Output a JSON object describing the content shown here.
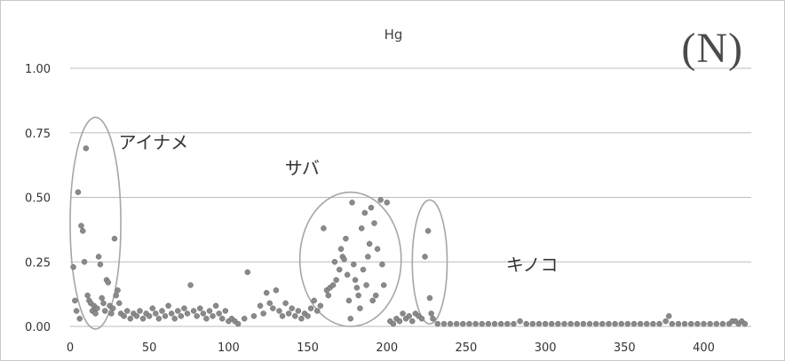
{
  "chart_data": {
    "type": "scatter",
    "title": "Hg",
    "panel_label": "(N)",
    "xlim": [
      0,
      430
    ],
    "ylim": [
      0,
      1.0
    ],
    "x_ticks": [
      0,
      50,
      100,
      150,
      200,
      250,
      300,
      350,
      400
    ],
    "y_ticks": [
      0.0,
      0.25,
      0.5,
      0.75,
      1.0
    ],
    "y_tick_labels": [
      "0.00",
      "0.25",
      "0.50",
      "0.75",
      "1.00"
    ],
    "grid": "horizontal",
    "marker_color": "#8a8a8a",
    "groups": [
      {
        "label": "アイナメ",
        "center": [
          16,
          0.4
        ],
        "radius_x": 16,
        "radius_y": 0.41
      },
      {
        "label": "サバ",
        "center": [
          177,
          0.26
        ],
        "radius_x": 32,
        "radius_y": 0.26
      },
      {
        "label": "キノコ",
        "center": [
          227,
          0.25
        ],
        "radius_x": 11,
        "radius_y": 0.24
      }
    ],
    "points": [
      [
        2,
        0.23
      ],
      [
        3,
        0.1
      ],
      [
        4,
        0.06
      ],
      [
        5,
        0.52
      ],
      [
        6,
        0.03
      ],
      [
        7,
        0.39
      ],
      [
        8,
        0.37
      ],
      [
        9,
        0.25
      ],
      [
        10,
        0.69
      ],
      [
        11,
        0.12
      ],
      [
        12,
        0.1
      ],
      [
        13,
        0.09
      ],
      [
        14,
        0.06
      ],
      [
        15,
        0.08
      ],
      [
        16,
        0.05
      ],
      [
        17,
        0.07
      ],
      [
        18,
        0.27
      ],
      [
        19,
        0.24
      ],
      [
        20,
        0.11
      ],
      [
        21,
        0.09
      ],
      [
        22,
        0.06
      ],
      [
        23,
        0.18
      ],
      [
        24,
        0.17
      ],
      [
        25,
        0.08
      ],
      [
        26,
        0.05
      ],
      [
        27,
        0.07
      ],
      [
        28,
        0.34
      ],
      [
        29,
        0.12
      ],
      [
        30,
        0.14
      ],
      [
        31,
        0.09
      ],
      [
        32,
        0.05
      ],
      [
        34,
        0.04
      ],
      [
        36,
        0.06
      ],
      [
        38,
        0.03
      ],
      [
        40,
        0.05
      ],
      [
        42,
        0.04
      ],
      [
        44,
        0.06
      ],
      [
        46,
        0.03
      ],
      [
        48,
        0.05
      ],
      [
        50,
        0.04
      ],
      [
        52,
        0.07
      ],
      [
        54,
        0.05
      ],
      [
        56,
        0.03
      ],
      [
        58,
        0.06
      ],
      [
        60,
        0.04
      ],
      [
        62,
        0.08
      ],
      [
        64,
        0.05
      ],
      [
        66,
        0.03
      ],
      [
        68,
        0.06
      ],
      [
        70,
        0.04
      ],
      [
        72,
        0.07
      ],
      [
        74,
        0.05
      ],
      [
        76,
        0.16
      ],
      [
        78,
        0.06
      ],
      [
        80,
        0.04
      ],
      [
        82,
        0.07
      ],
      [
        84,
        0.05
      ],
      [
        86,
        0.03
      ],
      [
        88,
        0.06
      ],
      [
        90,
        0.04
      ],
      [
        92,
        0.08
      ],
      [
        94,
        0.05
      ],
      [
        96,
        0.03
      ],
      [
        98,
        0.06
      ],
      [
        100,
        0.02
      ],
      [
        102,
        0.03
      ],
      [
        104,
        0.02
      ],
      [
        106,
        0.01
      ],
      [
        110,
        0.03
      ],
      [
        112,
        0.21
      ],
      [
        116,
        0.04
      ],
      [
        120,
        0.08
      ],
      [
        122,
        0.05
      ],
      [
        124,
        0.13
      ],
      [
        126,
        0.09
      ],
      [
        128,
        0.07
      ],
      [
        130,
        0.14
      ],
      [
        132,
        0.06
      ],
      [
        134,
        0.04
      ],
      [
        136,
        0.09
      ],
      [
        138,
        0.05
      ],
      [
        140,
        0.07
      ],
      [
        142,
        0.04
      ],
      [
        144,
        0.06
      ],
      [
        146,
        0.03
      ],
      [
        148,
        0.05
      ],
      [
        150,
        0.04
      ],
      [
        152,
        0.07
      ],
      [
        154,
        0.1
      ],
      [
        156,
        0.06
      ],
      [
        158,
        0.08
      ],
      [
        160,
        0.38
      ],
      [
        162,
        0.14
      ],
      [
        163,
        0.12
      ],
      [
        164,
        0.15
      ],
      [
        166,
        0.16
      ],
      [
        167,
        0.25
      ],
      [
        168,
        0.18
      ],
      [
        170,
        0.22
      ],
      [
        171,
        0.3
      ],
      [
        172,
        0.27
      ],
      [
        173,
        0.26
      ],
      [
        174,
        0.34
      ],
      [
        175,
        0.2
      ],
      [
        176,
        0.1
      ],
      [
        177,
        0.03
      ],
      [
        178,
        0.48
      ],
      [
        179,
        0.24
      ],
      [
        180,
        0.18
      ],
      [
        181,
        0.15
      ],
      [
        182,
        0.12
      ],
      [
        183,
        0.07
      ],
      [
        184,
        0.38
      ],
      [
        185,
        0.22
      ],
      [
        186,
        0.44
      ],
      [
        187,
        0.16
      ],
      [
        188,
        0.27
      ],
      [
        189,
        0.32
      ],
      [
        190,
        0.46
      ],
      [
        191,
        0.1
      ],
      [
        192,
        0.4
      ],
      [
        193,
        0.12
      ],
      [
        194,
        0.3
      ],
      [
        196,
        0.49
      ],
      [
        197,
        0.24
      ],
      [
        198,
        0.16
      ],
      [
        200,
        0.48
      ],
      [
        202,
        0.02
      ],
      [
        204,
        0.01
      ],
      [
        206,
        0.03
      ],
      [
        208,
        0.02
      ],
      [
        210,
        0.05
      ],
      [
        212,
        0.03
      ],
      [
        214,
        0.04
      ],
      [
        216,
        0.02
      ],
      [
        218,
        0.05
      ],
      [
        220,
        0.04
      ],
      [
        222,
        0.03
      ],
      [
        224,
        0.27
      ],
      [
        226,
        0.37
      ],
      [
        227,
        0.11
      ],
      [
        228,
        0.05
      ],
      [
        229,
        0.03
      ],
      [
        232,
        0.01
      ],
      [
        236,
        0.01
      ],
      [
        240,
        0.01
      ],
      [
        244,
        0.01
      ],
      [
        248,
        0.01
      ],
      [
        252,
        0.01
      ],
      [
        256,
        0.01
      ],
      [
        260,
        0.01
      ],
      [
        264,
        0.01
      ],
      [
        268,
        0.01
      ],
      [
        272,
        0.01
      ],
      [
        276,
        0.01
      ],
      [
        280,
        0.01
      ],
      [
        284,
        0.02
      ],
      [
        288,
        0.01
      ],
      [
        292,
        0.01
      ],
      [
        296,
        0.01
      ],
      [
        300,
        0.01
      ],
      [
        304,
        0.01
      ],
      [
        308,
        0.01
      ],
      [
        312,
        0.01
      ],
      [
        316,
        0.01
      ],
      [
        320,
        0.01
      ],
      [
        324,
        0.01
      ],
      [
        328,
        0.01
      ],
      [
        332,
        0.01
      ],
      [
        336,
        0.01
      ],
      [
        340,
        0.01
      ],
      [
        344,
        0.01
      ],
      [
        348,
        0.01
      ],
      [
        352,
        0.01
      ],
      [
        356,
        0.01
      ],
      [
        360,
        0.01
      ],
      [
        364,
        0.01
      ],
      [
        368,
        0.01
      ],
      [
        372,
        0.01
      ],
      [
        376,
        0.02
      ],
      [
        378,
        0.04
      ],
      [
        380,
        0.01
      ],
      [
        384,
        0.01
      ],
      [
        388,
        0.01
      ],
      [
        392,
        0.01
      ],
      [
        396,
        0.01
      ],
      [
        400,
        0.01
      ],
      [
        404,
        0.01
      ],
      [
        408,
        0.01
      ],
      [
        412,
        0.01
      ],
      [
        416,
        0.01
      ],
      [
        418,
        0.02
      ],
      [
        420,
        0.02
      ],
      [
        422,
        0.01
      ],
      [
        424,
        0.02
      ],
      [
        426,
        0.01
      ]
    ]
  }
}
